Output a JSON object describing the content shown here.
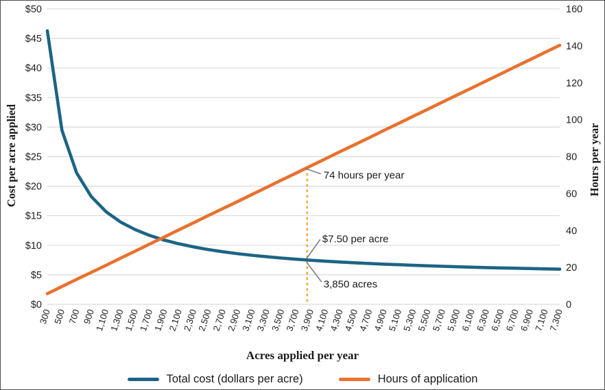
{
  "chart_data": {
    "type": "line",
    "x_axis": {
      "title": "Acres applied per year",
      "min": 300,
      "max": 7300,
      "tick_step": 200
    },
    "left_axis": {
      "title": "Cost per acre applied",
      "min": 0,
      "max": 50,
      "step": 5,
      "tick_labels": [
        "$0",
        "$5",
        "$10",
        "$15",
        "$20",
        "$25",
        "$30",
        "$35",
        "$40",
        "$45",
        "$50"
      ]
    },
    "right_axis": {
      "title": "Hours per year",
      "min": 0,
      "max": 160,
      "step": 20,
      "tick_labels": [
        "0",
        "20",
        "40",
        "60",
        "80",
        "100",
        "120",
        "140",
        "160"
      ]
    },
    "x": [
      300,
      500,
      700,
      900,
      1100,
      1300,
      1500,
      1700,
      1900,
      2100,
      2300,
      2500,
      2700,
      2900,
      3100,
      3300,
      3500,
      3700,
      3900,
      4100,
      4300,
      4500,
      4700,
      4900,
      5100,
      5300,
      5500,
      5700,
      5900,
      6100,
      6300,
      6500,
      6700,
      6900,
      7100,
      7300
    ],
    "x_tick_labels": [
      "300",
      "500",
      "700",
      "900",
      "1,100",
      "1,300",
      "1,500",
      "1,700",
      "1,900",
      "2,100",
      "2,300",
      "2,500",
      "2,700",
      "2,900",
      "3,100",
      "3,300",
      "3,500",
      "3,700",
      "3,900",
      "4,100",
      "4,300",
      "4,500",
      "4,700",
      "4,900",
      "5,100",
      "5,300",
      "5,500",
      "5,700",
      "5,900",
      "6,100",
      "6,300",
      "6,500",
      "6,700",
      "6,900",
      "7,100",
      "7,300"
    ],
    "series": [
      {
        "name": "Total cost (dollars per acre)",
        "axis": "left",
        "color": "#1c6485",
        "values": [
          46.3,
          29.47,
          22.25,
          18.25,
          15.7,
          13.93,
          12.64,
          11.65,
          10.86,
          10.23,
          9.71,
          9.27,
          8.9,
          8.57,
          8.29,
          8.05,
          7.83,
          7.63,
          7.46,
          7.3,
          7.16,
          7.03,
          6.91,
          6.8,
          6.7,
          6.6,
          6.52,
          6.44,
          6.36,
          6.29,
          6.22,
          6.16,
          6.11,
          6.05,
          6.0,
          5.95
        ]
      },
      {
        "name": "Hours of application",
        "axis": "right",
        "color": "#e8722e",
        "values": [
          5.8,
          9.6,
          13.5,
          17.3,
          21.1,
          25.0,
          28.8,
          32.7,
          36.5,
          40.4,
          44.2,
          48.1,
          51.9,
          55.7,
          59.6,
          63.4,
          67.3,
          71.1,
          75.0,
          78.8,
          82.7,
          86.5,
          90.3,
          94.2,
          98.0,
          101.9,
          105.7,
          109.6,
          113.4,
          117.2,
          121.1,
          124.9,
          128.8,
          132.6,
          136.5,
          140.3
        ]
      }
    ],
    "reference_line": {
      "x": 3850,
      "top_value": 74,
      "top_axis": "right",
      "style": "dashed",
      "color": "#f5a33c"
    },
    "annotations": [
      {
        "text": "74 hours per year",
        "x": 3850,
        "value": 74,
        "axis": "right"
      },
      {
        "text": "$7.50 per acre",
        "x": 3850,
        "value": 7.5,
        "axis": "left"
      },
      {
        "text": "3,850 acres",
        "x": 3850,
        "value": 7.5,
        "axis": "left"
      }
    ],
    "grid": true,
    "legend_position": "bottom",
    "colors": {
      "gridline": "#d9d9d9",
      "tick_text": "#1f1f1f",
      "annotation_text": "#1a1a1a",
      "leader_line": "#7f7f7f"
    }
  }
}
